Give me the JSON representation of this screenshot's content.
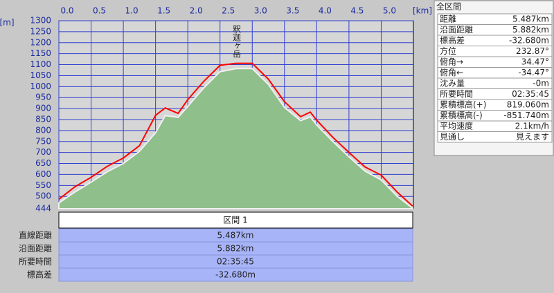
{
  "chart_data": {
    "type": "line",
    "x_unit": "[km]",
    "y_unit": "[m]",
    "x": [
      0,
      0.25,
      0.5,
      0.75,
      1.0,
      1.25,
      1.5,
      1.65,
      1.85,
      2.0,
      2.25,
      2.5,
      2.75,
      3.0,
      3.25,
      3.5,
      3.75,
      3.9,
      4.0,
      4.25,
      4.5,
      4.75,
      5.0,
      5.25,
      5.487
    ],
    "series": [
      {
        "color": "#8fbf8a",
        "fill": true,
        "values": [
          470,
          520,
          565,
          612,
          650,
          705,
          790,
          868,
          860,
          910,
          995,
          1068,
          1082,
          1082,
          1010,
          905,
          845,
          862,
          825,
          750,
          680,
          615,
          575,
          500,
          446
        ]
      },
      {
        "color": "#ff0000",
        "values": [
          487,
          544,
          587,
          637,
          675,
          731,
          869,
          903,
          878,
          941,
          1025,
          1097,
          1106,
          1106,
          1034,
          931,
          863,
          884,
          847,
          769,
          700,
          634,
          597,
          519,
          456
        ]
      }
    ],
    "annotation": {
      "text": "釈迦ヶ岳",
      "x": 2.75
    },
    "xlim": [
      0,
      5.5
    ],
    "xticks": [
      {
        "value": 0,
        "label": "0.0"
      },
      0.5,
      {
        "value": 1,
        "label": "1.0"
      },
      1.5,
      {
        "value": 2,
        "label": "2.0"
      },
      2.5,
      {
        "value": 3,
        "label": "3.0"
      },
      3.5,
      {
        "value": 4,
        "label": "4.0"
      },
      4.5,
      {
        "value": 5,
        "label": "5.0"
      }
    ],
    "ylim": [
      444,
      1300
    ],
    "yticks": [
      444,
      500,
      550,
      600,
      650,
      700,
      750,
      800,
      850,
      900,
      950,
      1000,
      1050,
      1100,
      1150,
      1200,
      1250,
      1300
    ],
    "grid": true
  },
  "summary": {
    "title": "全区間",
    "rows": [
      [
        "距離",
        "5.487km"
      ],
      [
        "沿面距離",
        "5.882km"
      ],
      [
        "標高差",
        "-32.680m"
      ],
      [
        "方位",
        "232.87°"
      ],
      [
        "俯角→",
        "34.47°"
      ],
      [
        "俯角←",
        "-34.47°"
      ],
      [
        "沈み量",
        "-0m"
      ],
      [
        "所要時間",
        "02:35:45"
      ],
      [
        "累積標高(+)",
        "819.060m"
      ],
      [
        "累積標高(-)",
        "-851.740m"
      ],
      [
        "平均速度",
        "2.1km/h"
      ],
      [
        "見通し",
        "見えます"
      ]
    ]
  },
  "section": {
    "title": "区間 1",
    "rows": [
      [
        "直線距離",
        "5.487km"
      ],
      [
        "沿面距離",
        "5.882km"
      ],
      [
        "所要時間",
        "02:35:45"
      ],
      [
        "標高差",
        "-32.680m"
      ]
    ]
  }
}
